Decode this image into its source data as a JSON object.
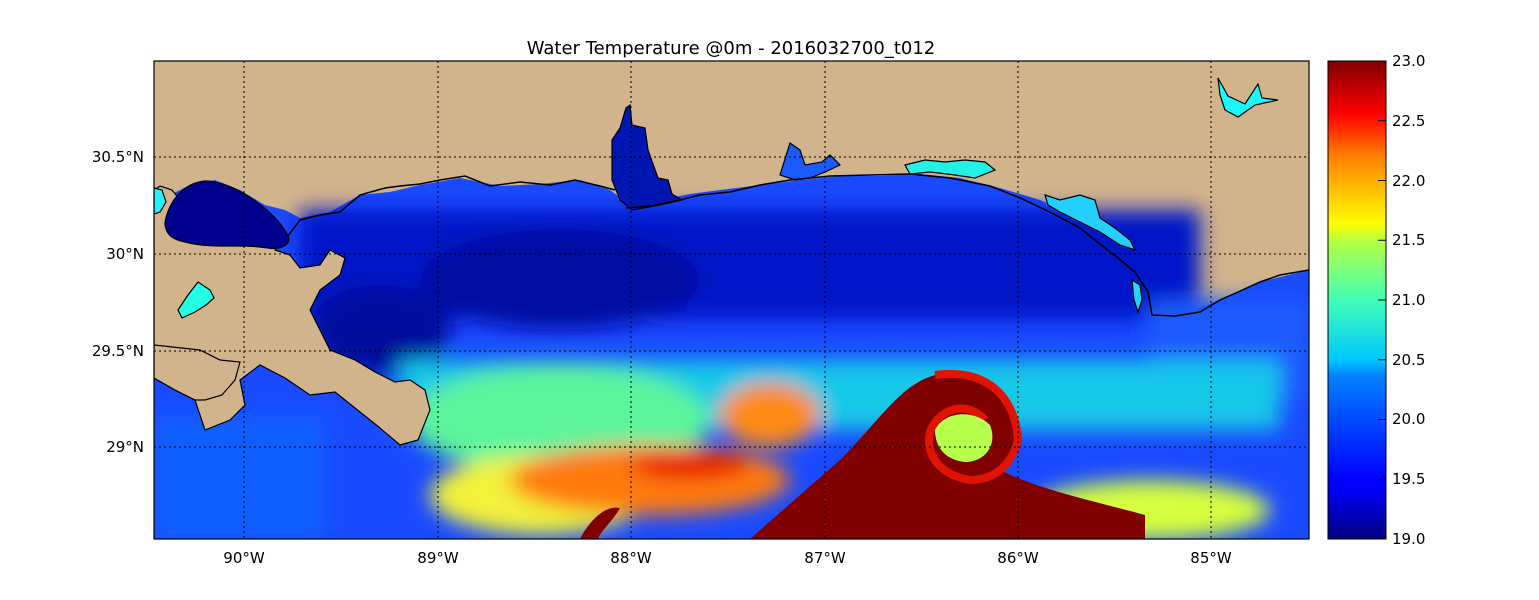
{
  "title": "Water Temperature @0m - 2016032700_t012",
  "x_ticks": [
    "90°W",
    "89°W",
    "88°W",
    "87°W",
    "86°W",
    "85°W"
  ],
  "y_ticks": [
    "30.5°N",
    "30°N",
    "29.5°N",
    "29°N"
  ],
  "colorbar": {
    "min": 19.0,
    "max": 23.0,
    "ticks": [
      "23.0",
      "22.5",
      "22.0",
      "21.5",
      "21.0",
      "20.5",
      "20.0",
      "19.5",
      "19.0"
    ],
    "colormap": "jet"
  },
  "colors": {
    "land": "#d2b48c",
    "frame": "#000000",
    "grid": "#000000"
  }
}
